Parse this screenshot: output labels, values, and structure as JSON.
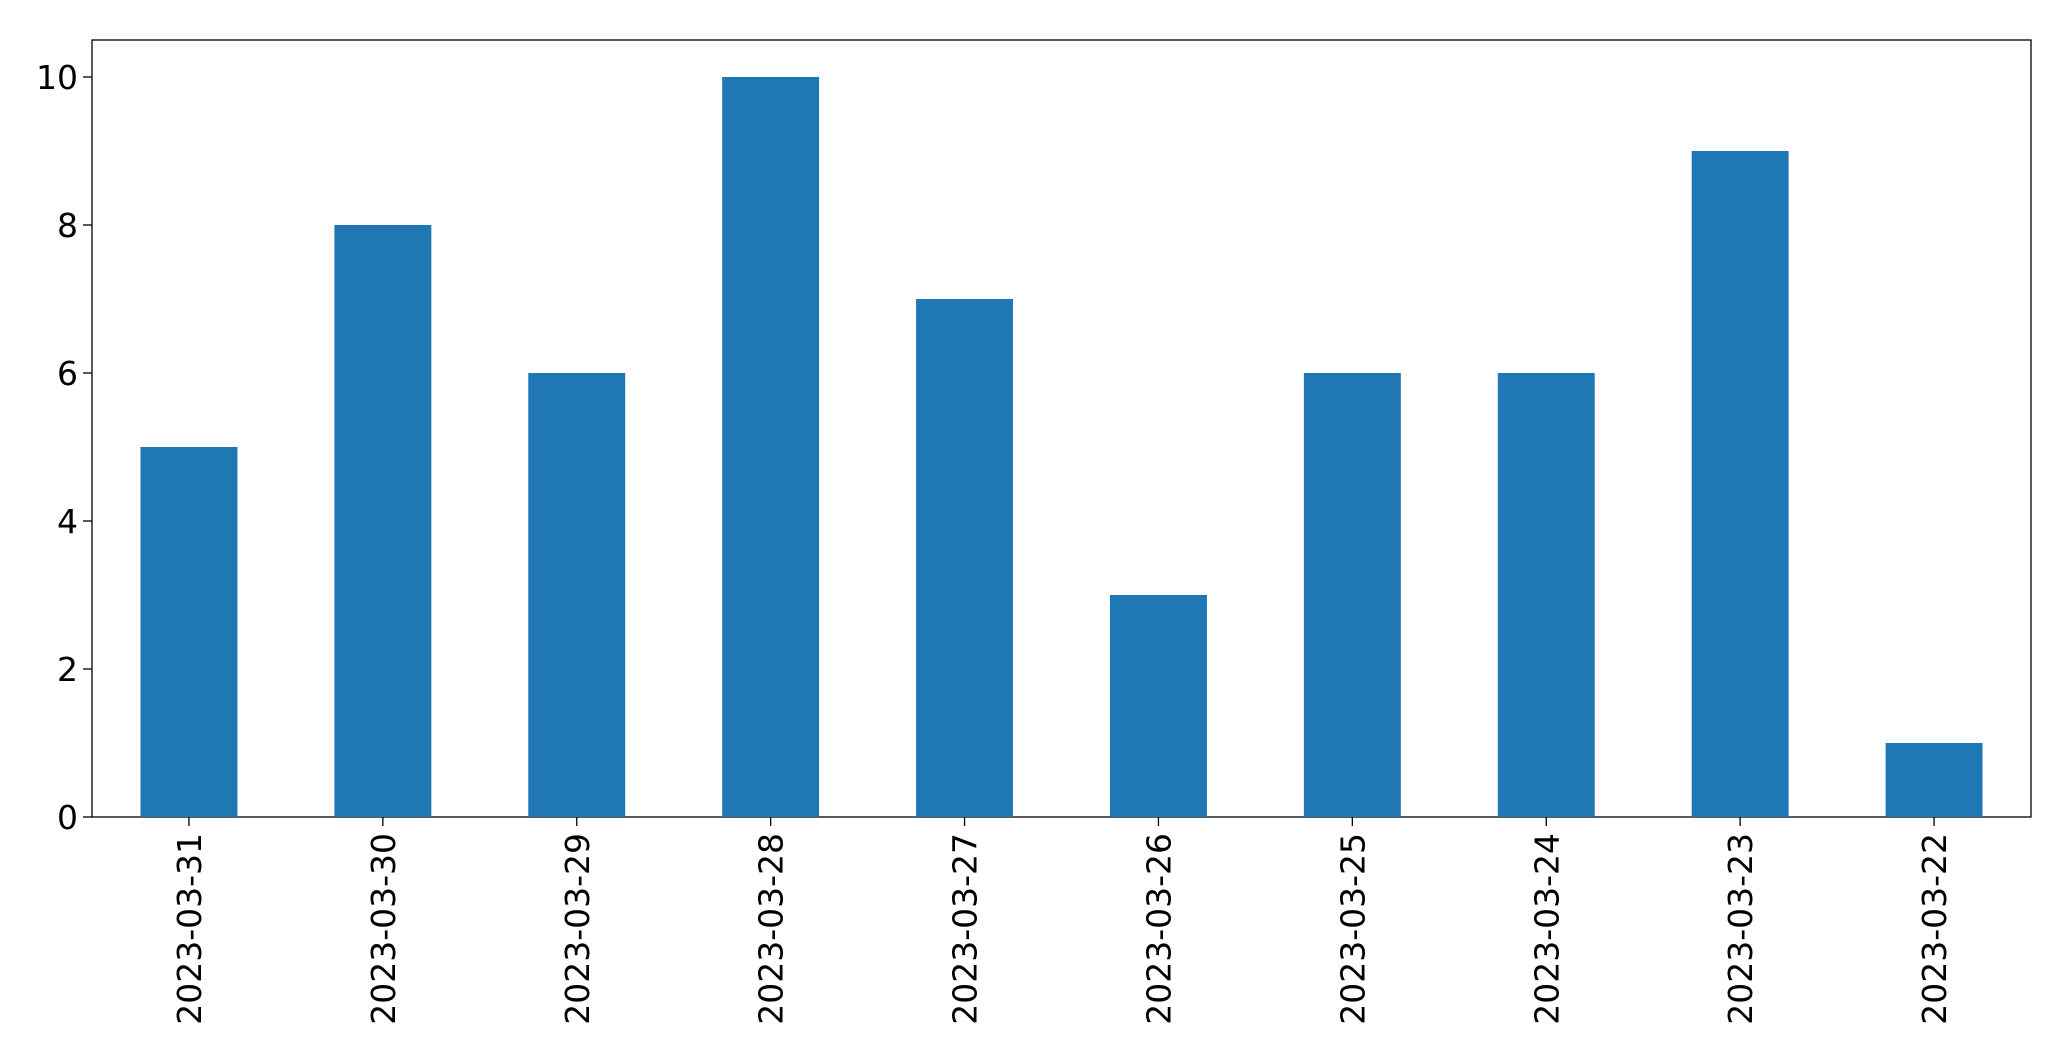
{
  "chart_data": {
    "type": "bar",
    "categories": [
      "2023-03-31",
      "2023-03-30",
      "2023-03-29",
      "2023-03-28",
      "2023-03-27",
      "2023-03-26",
      "2023-03-25",
      "2023-03-24",
      "2023-03-23",
      "2023-03-22"
    ],
    "values": [
      5,
      8,
      6,
      10,
      7,
      3,
      6,
      6,
      9,
      1
    ],
    "color": "#1f77b4",
    "ylim": [
      0,
      10.5
    ],
    "yticks": [
      0,
      2,
      4,
      6,
      8,
      10
    ],
    "grid": false
  }
}
